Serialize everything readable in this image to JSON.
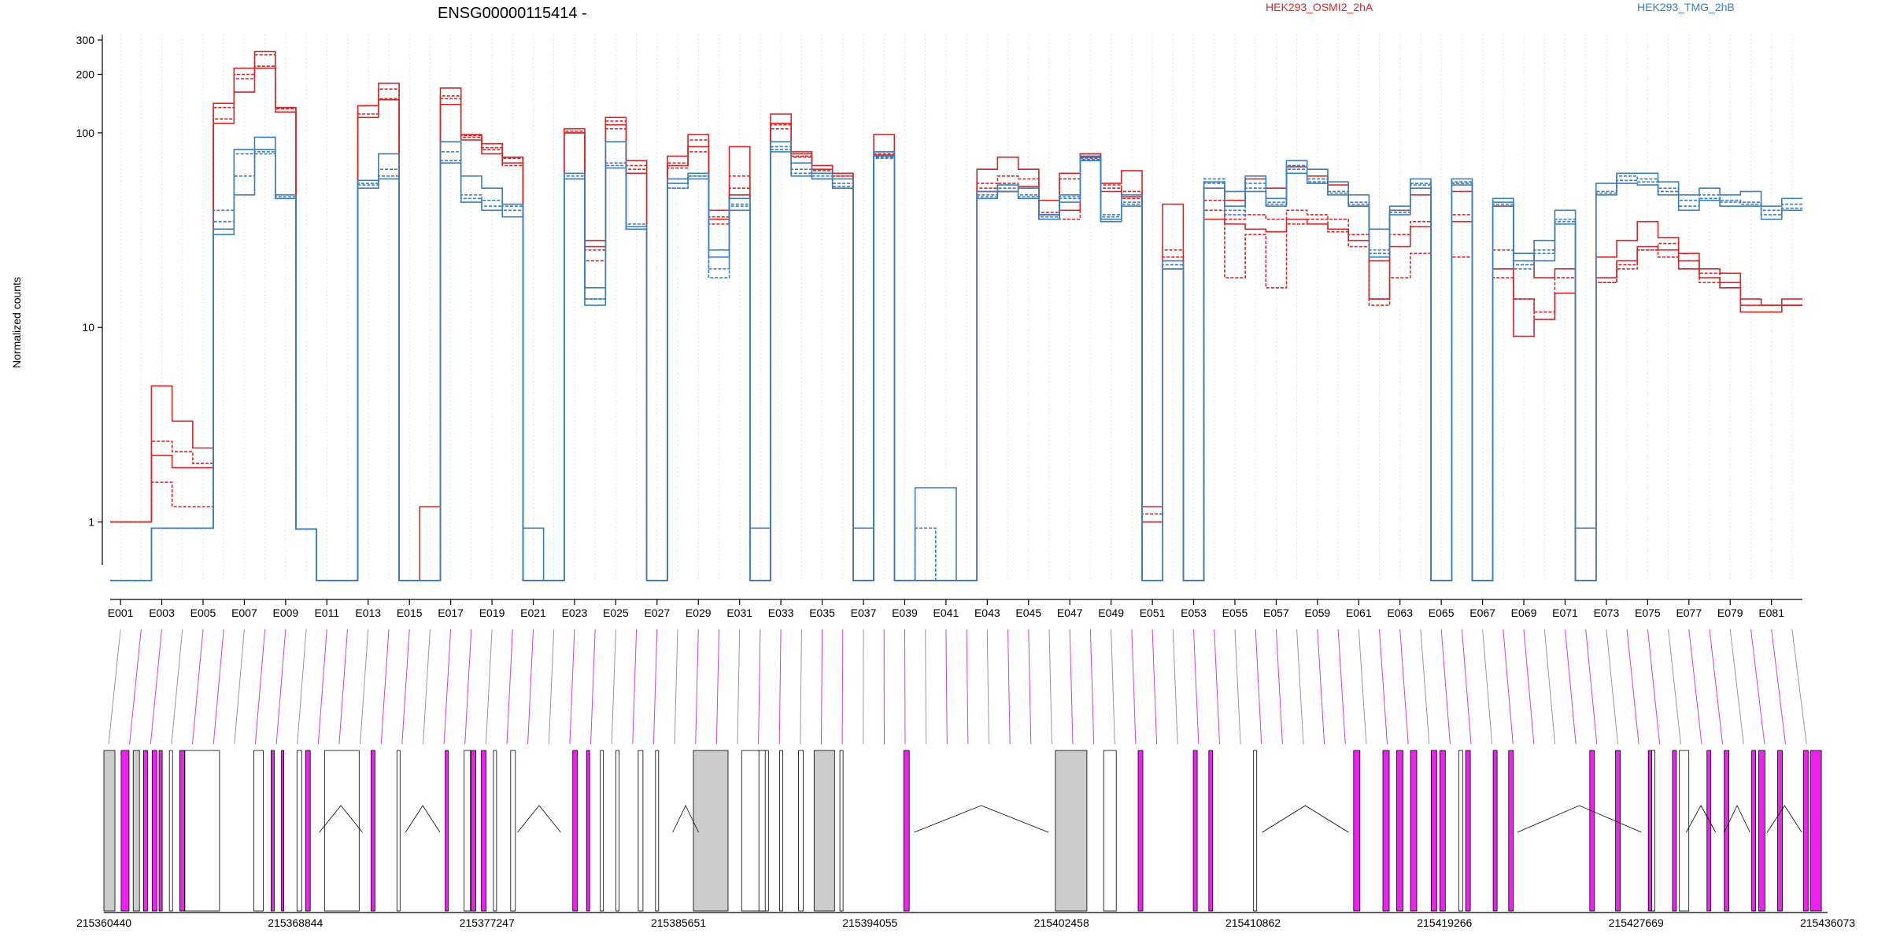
{
  "chart_data": {
    "type": "line",
    "title": "ENSG00000115414 -",
    "ylabel": "Normalized counts",
    "xlabel": "",
    "y_scale": "log",
    "ylim": [
      0.5,
      320
    ],
    "y_ticks": [
      1,
      10,
      100,
      200,
      300
    ],
    "y_tick_labels": [
      "1",
      "10",
      "100",
      "200",
      "300"
    ],
    "grid": "vertical dotted lines at each exon",
    "legend_position": "top",
    "exons": [
      "E001",
      "E002",
      "E003",
      "E004",
      "E005",
      "E006",
      "E007",
      "E008",
      "E009",
      "E010",
      "E011",
      "E012",
      "E013",
      "E014",
      "E015",
      "E016",
      "E017",
      "E018",
      "E019",
      "E020",
      "E021",
      "E022",
      "E023",
      "E024",
      "E025",
      "E026",
      "E027",
      "E028",
      "E029",
      "E030",
      "E031",
      "E032",
      "E033",
      "E034",
      "E035",
      "E036",
      "E037",
      "E038",
      "E039",
      "E040",
      "E041",
      "E042",
      "E043",
      "E044",
      "E045",
      "E046",
      "E047",
      "E048",
      "E049",
      "E050",
      "E051",
      "E052",
      "E053",
      "E054",
      "E055",
      "E056",
      "E057",
      "E058",
      "E059",
      "E060",
      "E061",
      "E062",
      "E063",
      "E064",
      "E065",
      "E066",
      "E067",
      "E068",
      "E069",
      "E070",
      "E071",
      "E072",
      "E073",
      "E074",
      "E075",
      "E076",
      "E077",
      "E078",
      "E079",
      "E080",
      "E081",
      "E082"
    ],
    "x_tick_labels": [
      "E001",
      "E003",
      "E005",
      "E007",
      "E009",
      "E011",
      "E013",
      "E015",
      "E017",
      "E019",
      "E021",
      "E023",
      "E025",
      "E027",
      "E029",
      "E031",
      "E033",
      "E035",
      "E037",
      "E039",
      "E041",
      "E043",
      "E045",
      "E047",
      "E049",
      "E051",
      "E053",
      "E055",
      "E057",
      "E059",
      "E061",
      "E063",
      "E065",
      "E067",
      "E069",
      "E071",
      "E073",
      "E075",
      "E077",
      "E079",
      "E081"
    ],
    "groups": [
      {
        "name": "HEK293_OSMI2_2hA",
        "color": "#d62728"
      },
      {
        "name": "HEK293_TMG_2hB",
        "color": "#3a7ebf"
      }
    ],
    "series": [
      {
        "group": 0,
        "values": [
          1.0,
          1.0,
          5.0,
          3.3,
          2.4,
          142,
          215,
          262,
          135,
          0.92,
          0.5,
          0.5,
          138,
          180,
          0.5,
          1.2,
          170,
          98,
          88,
          75,
          0.5,
          0.5,
          105,
          28,
          120,
          72,
          0.5,
          76,
          98,
          40,
          85,
          0.5,
          125,
          80,
          68,
          62,
          0.5,
          98,
          0.5,
          0.5,
          0.5,
          0.5,
          65,
          75,
          65,
          45,
          62,
          78,
          55,
          64,
          1.2,
          43,
          0.5,
          52,
          45,
          58,
          52,
          67,
          60,
          54,
          42,
          22,
          40,
          48,
          0.5,
          50,
          0.5,
          42,
          24,
          18,
          20,
          0.5,
          23,
          28,
          35,
          29,
          24,
          20,
          19,
          14,
          13,
          14
        ]
      },
      {
        "group": 0,
        "values": [
          1.0,
          1.0,
          2.6,
          2.3,
          2.0,
          118,
          190,
          252,
          133,
          0.92,
          0.5,
          0.5,
          138,
          168,
          0.5,
          0.5,
          150,
          95,
          84,
          74,
          0.5,
          0.5,
          100,
          22,
          105,
          68,
          0.5,
          66,
          92,
          37,
          60,
          0.5,
          110,
          75,
          64,
          60,
          0.5,
          78,
          0.5,
          0.5,
          0.5,
          0.5,
          52,
          55,
          52,
          38,
          58,
          76,
          52,
          50,
          1.1,
          25,
          0.5,
          40,
          36,
          38,
          36,
          40,
          38,
          36,
          30,
          14,
          30,
          35,
          0.5,
          38,
          0.5,
          25,
          14,
          12,
          18,
          0.5,
          17,
          20,
          25,
          23,
          20,
          17,
          16,
          12,
          12,
          13
        ]
      },
      {
        "group": 0,
        "values": [
          1.0,
          1.0,
          2.2,
          1.9,
          1.9,
          112,
          162,
          215,
          128,
          0.92,
          0.5,
          0.5,
          120,
          148,
          0.5,
          0.5,
          140,
          92,
          78,
          70,
          0.5,
          0.5,
          100,
          26,
          110,
          62,
          0.5,
          68,
          85,
          36,
          48,
          0.5,
          112,
          78,
          65,
          62,
          0.5,
          77,
          0.5,
          0.5,
          0.5,
          0.5,
          50,
          50,
          53,
          38,
          40,
          75,
          50,
          47,
          1.0,
          20,
          0.5,
          36,
          34,
          32,
          31,
          36,
          34,
          32,
          28,
          14,
          26,
          33,
          0.5,
          35,
          0.5,
          20,
          9,
          11,
          15,
          0.5,
          18,
          22,
          26,
          25,
          22,
          18,
          17,
          13,
          13,
          13
        ]
      },
      {
        "group": 0,
        "values": [
          1.0,
          1.0,
          1.6,
          1.2,
          1.2,
          135,
          200,
          220,
          128,
          0.92,
          0.5,
          0.5,
          125,
          150,
          0.5,
          0.5,
          155,
          97,
          82,
          68,
          0.5,
          0.5,
          102,
          25,
          115,
          65,
          0.5,
          70,
          80,
          34,
          52,
          0.5,
          105,
          76,
          62,
          60,
          0.5,
          80,
          0.5,
          0.5,
          0.5,
          0.5,
          55,
          60,
          58,
          39,
          36,
          78,
          54,
          46,
          1.0,
          23,
          0.5,
          45,
          18,
          30,
          16,
          34,
          36,
          31,
          26,
          13,
          18,
          24,
          0.5,
          23,
          0.5,
          18,
          14,
          11,
          15,
          0.5,
          17,
          21,
          25,
          27,
          20,
          19,
          16,
          12,
          12,
          13
        ]
      },
      {
        "group": 1,
        "values": [
          0.5,
          0.5,
          0.93,
          0.93,
          0.93,
          32,
          82,
          95,
          48,
          0.92,
          0.5,
          0.5,
          57,
          78,
          0.5,
          0.5,
          90,
          60,
          52,
          43,
          0.93,
          0.5,
          62,
          16,
          90,
          33,
          0.5,
          58,
          62,
          23,
          46,
          0.93,
          90,
          70,
          62,
          58,
          0.93,
          80,
          0.5,
          1.5,
          1.5,
          0.5,
          50,
          54,
          52,
          38,
          48,
          76,
          35,
          48,
          0.5,
          22,
          0.5,
          56,
          50,
          60,
          46,
          72,
          65,
          56,
          48,
          32,
          42,
          58,
          0.5,
          58,
          0.5,
          46,
          24,
          28,
          40,
          0.93,
          55,
          62,
          62,
          56,
          48,
          52,
          48,
          50,
          42,
          46
        ]
      },
      {
        "group": 1,
        "values": [
          0.5,
          0.5,
          0.93,
          0.93,
          0.93,
          40,
          78,
          80,
          47,
          0.92,
          0.5,
          0.5,
          55,
          65,
          0.5,
          0.5,
          80,
          48,
          45,
          42,
          0.5,
          0.5,
          60,
          14,
          70,
          32,
          0.5,
          52,
          60,
          18,
          43,
          0.5,
          85,
          65,
          60,
          55,
          0.5,
          75,
          0.5,
          0.93,
          0.5,
          0.5,
          48,
          52,
          48,
          37,
          47,
          73,
          38,
          44,
          0.5,
          21,
          0.5,
          58,
          40,
          55,
          44,
          68,
          58,
          50,
          44,
          25,
          40,
          55,
          0.5,
          55,
          0.5,
          42,
          20,
          25,
          36,
          0.5,
          50,
          60,
          58,
          52,
          45,
          48,
          45,
          44,
          40,
          43
        ]
      },
      {
        "group": 1,
        "values": [
          0.5,
          0.5,
          0.93,
          0.93,
          0.93,
          30,
          48,
          82,
          46,
          0.92,
          0.5,
          0.5,
          52,
          58,
          0.5,
          0.5,
          70,
          44,
          40,
          37,
          0.5,
          0.5,
          58,
          13,
          66,
          32,
          0.5,
          55,
          58,
          25,
          40,
          0.5,
          80,
          60,
          58,
          52,
          0.5,
          76,
          0.5,
          0.5,
          0.5,
          0.5,
          46,
          50,
          46,
          36,
          44,
          72,
          36,
          42,
          0.5,
          20,
          0.5,
          52,
          42,
          50,
          42,
          62,
          55,
          48,
          42,
          23,
          38,
          52,
          0.5,
          54,
          0.5,
          44,
          22,
          22,
          34,
          0.5,
          48,
          55,
          54,
          48,
          40,
          45,
          42,
          42,
          36,
          40
        ]
      },
      {
        "group": 1,
        "values": [
          0.5,
          0.5,
          0.93,
          0.93,
          0.93,
          35,
          60,
          78,
          46,
          0.92,
          0.5,
          0.5,
          54,
          60,
          0.5,
          0.5,
          72,
          46,
          42,
          40,
          0.5,
          0.5,
          58,
          14,
          68,
          34,
          0.5,
          52,
          60,
          20,
          42,
          0.5,
          82,
          62,
          58,
          53,
          0.5,
          74,
          0.5,
          0.5,
          0.5,
          0.5,
          47,
          50,
          47,
          36,
          46,
          74,
          37,
          43,
          0.5,
          20,
          0.5,
          55,
          38,
          52,
          43,
          65,
          56,
          49,
          43,
          24,
          39,
          54,
          0.5,
          56,
          0.5,
          43,
          21,
          24,
          35,
          0.5,
          49,
          57,
          56,
          50,
          42,
          46,
          44,
          43,
          38,
          41
        ]
      }
    ],
    "genome_axis_labels": [
      "215360440",
      "215368844",
      "215377247",
      "215385651",
      "215394055",
      "215402458",
      "215410862",
      "215419266",
      "215427669",
      "215436073"
    ]
  }
}
